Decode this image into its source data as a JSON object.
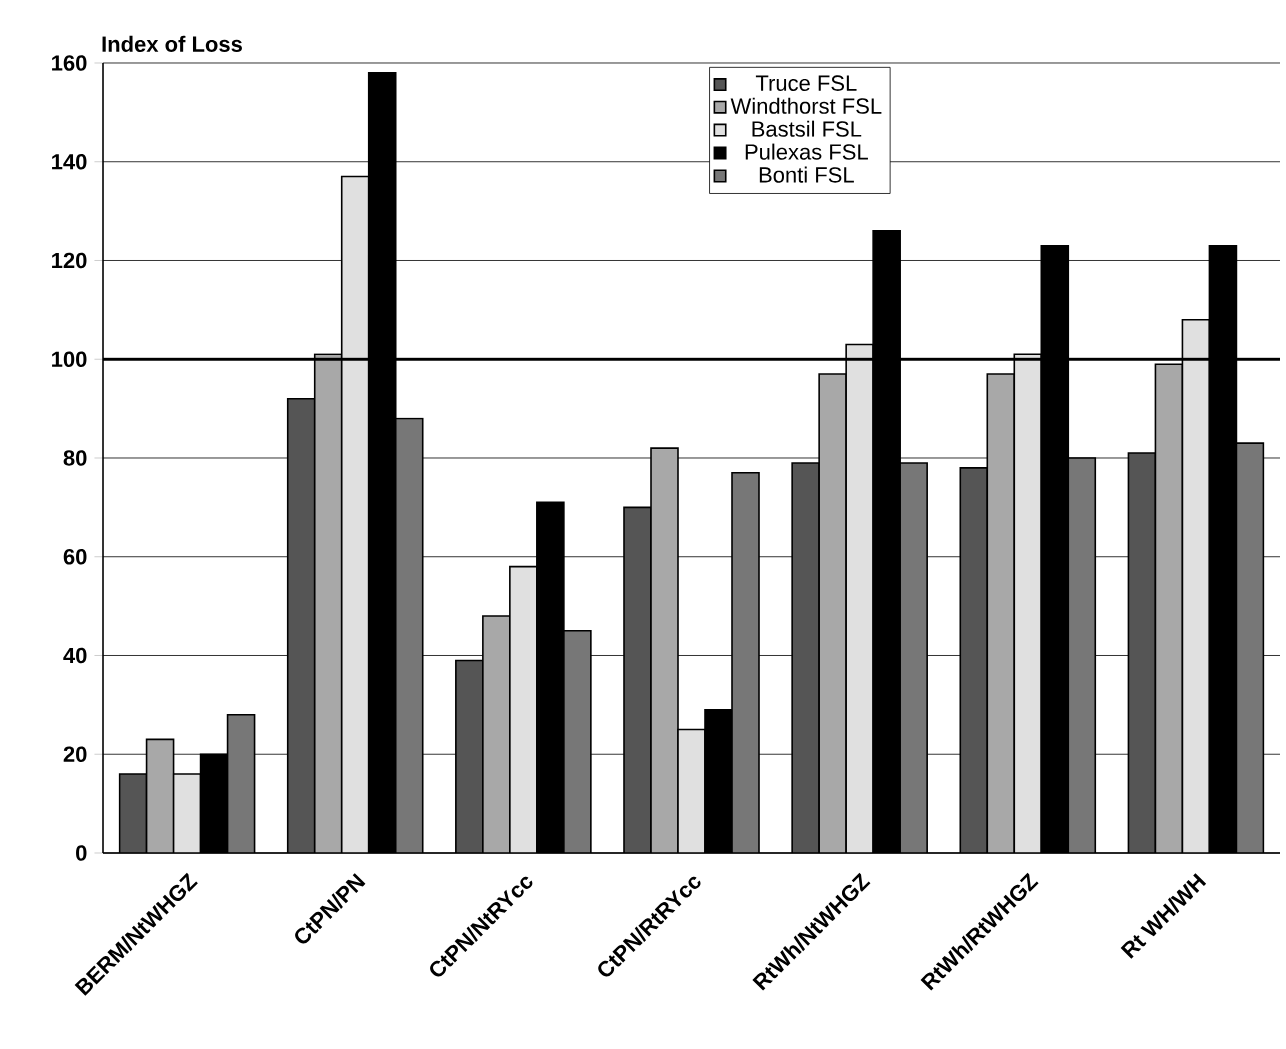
{
  "chart_data": {
    "type": "bar",
    "ylabel": "Index of Loss",
    "categories": [
      "BERM/NtWHGZ",
      "CtPN/PN",
      "CtPN/NtRYcc",
      "CtPN/RtRYcc",
      "RtWh/NtWHGZ",
      "RtWh/RtWHGZ",
      "Rt WH/WH"
    ],
    "series": [
      {
        "name": "Truce FSL",
        "color": "#555555",
        "values": [
          16,
          92,
          39,
          70,
          79,
          78,
          81
        ]
      },
      {
        "name": "Windthorst FSL",
        "color": "#a8a8a8",
        "values": [
          23,
          101,
          48,
          82,
          97,
          97,
          99
        ]
      },
      {
        "name": "Bastsil FSL",
        "color": "#e0e0e0",
        "values": [
          16,
          137,
          58,
          25,
          103,
          101,
          108
        ]
      },
      {
        "name": "Pulexas FSL",
        "color": "#000000",
        "values": [
          20,
          158,
          71,
          29,
          126,
          123,
          123
        ]
      },
      {
        "name": "Bonti FSL",
        "color": "#777777",
        "values": [
          28,
          88,
          45,
          77,
          79,
          80,
          83
        ]
      }
    ],
    "ylim": [
      0,
      160
    ],
    "yticks": [
      0,
      20,
      40,
      60,
      80,
      100,
      120,
      140,
      160
    ],
    "grid": "y",
    "legend": "top",
    "ref_lines": [
      {
        "axis": "y",
        "value": 100,
        "color": "#000000"
      }
    ]
  }
}
